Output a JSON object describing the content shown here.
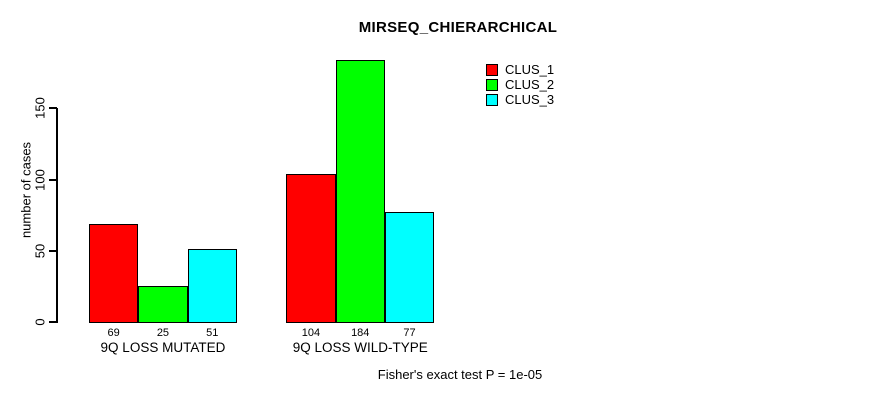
{
  "title": "MIRSEQ_CHIERARCHICAL",
  "ylabel": "number of cases",
  "footer": "Fisher's exact test P = 1e-05",
  "colors": {
    "background": "#FFFFFF",
    "axis": "#000000",
    "clus_1": "#FF0000",
    "clus_2": "#00FF00",
    "clus_3": "#00FFFF"
  },
  "legend": {
    "position": "top-right",
    "items": [
      {
        "label": "CLUS_1",
        "color": "#FF0000"
      },
      {
        "label": "CLUS_2",
        "color": "#00FF00"
      },
      {
        "label": "CLUS_3",
        "color": "#00FFFF"
      }
    ]
  },
  "chart_data": {
    "type": "bar",
    "title": "MIRSEQ_CHIERARCHICAL",
    "xlabel": "",
    "ylabel": "number of cases",
    "categories": [
      "9Q LOSS MUTATED",
      "9Q LOSS WILD-TYPE"
    ],
    "series": [
      {
        "name": "CLUS_1",
        "color": "#FF0000",
        "values": [
          69,
          104
        ]
      },
      {
        "name": "CLUS_2",
        "color": "#00FF00",
        "values": [
          25,
          184
        ]
      },
      {
        "name": "CLUS_3",
        "color": "#00FFFF",
        "values": [
          51,
          77
        ]
      }
    ],
    "bar_value_labels": [
      [
        69,
        25,
        51
      ],
      [
        104,
        184,
        77
      ]
    ],
    "yticks": [
      0,
      50,
      100,
      150
    ],
    "ylim": [
      0,
      184
    ],
    "grid": false,
    "legend_position": "top-right",
    "bar_borders": true,
    "annotation": "Fisher's exact test P = 1e-05"
  }
}
